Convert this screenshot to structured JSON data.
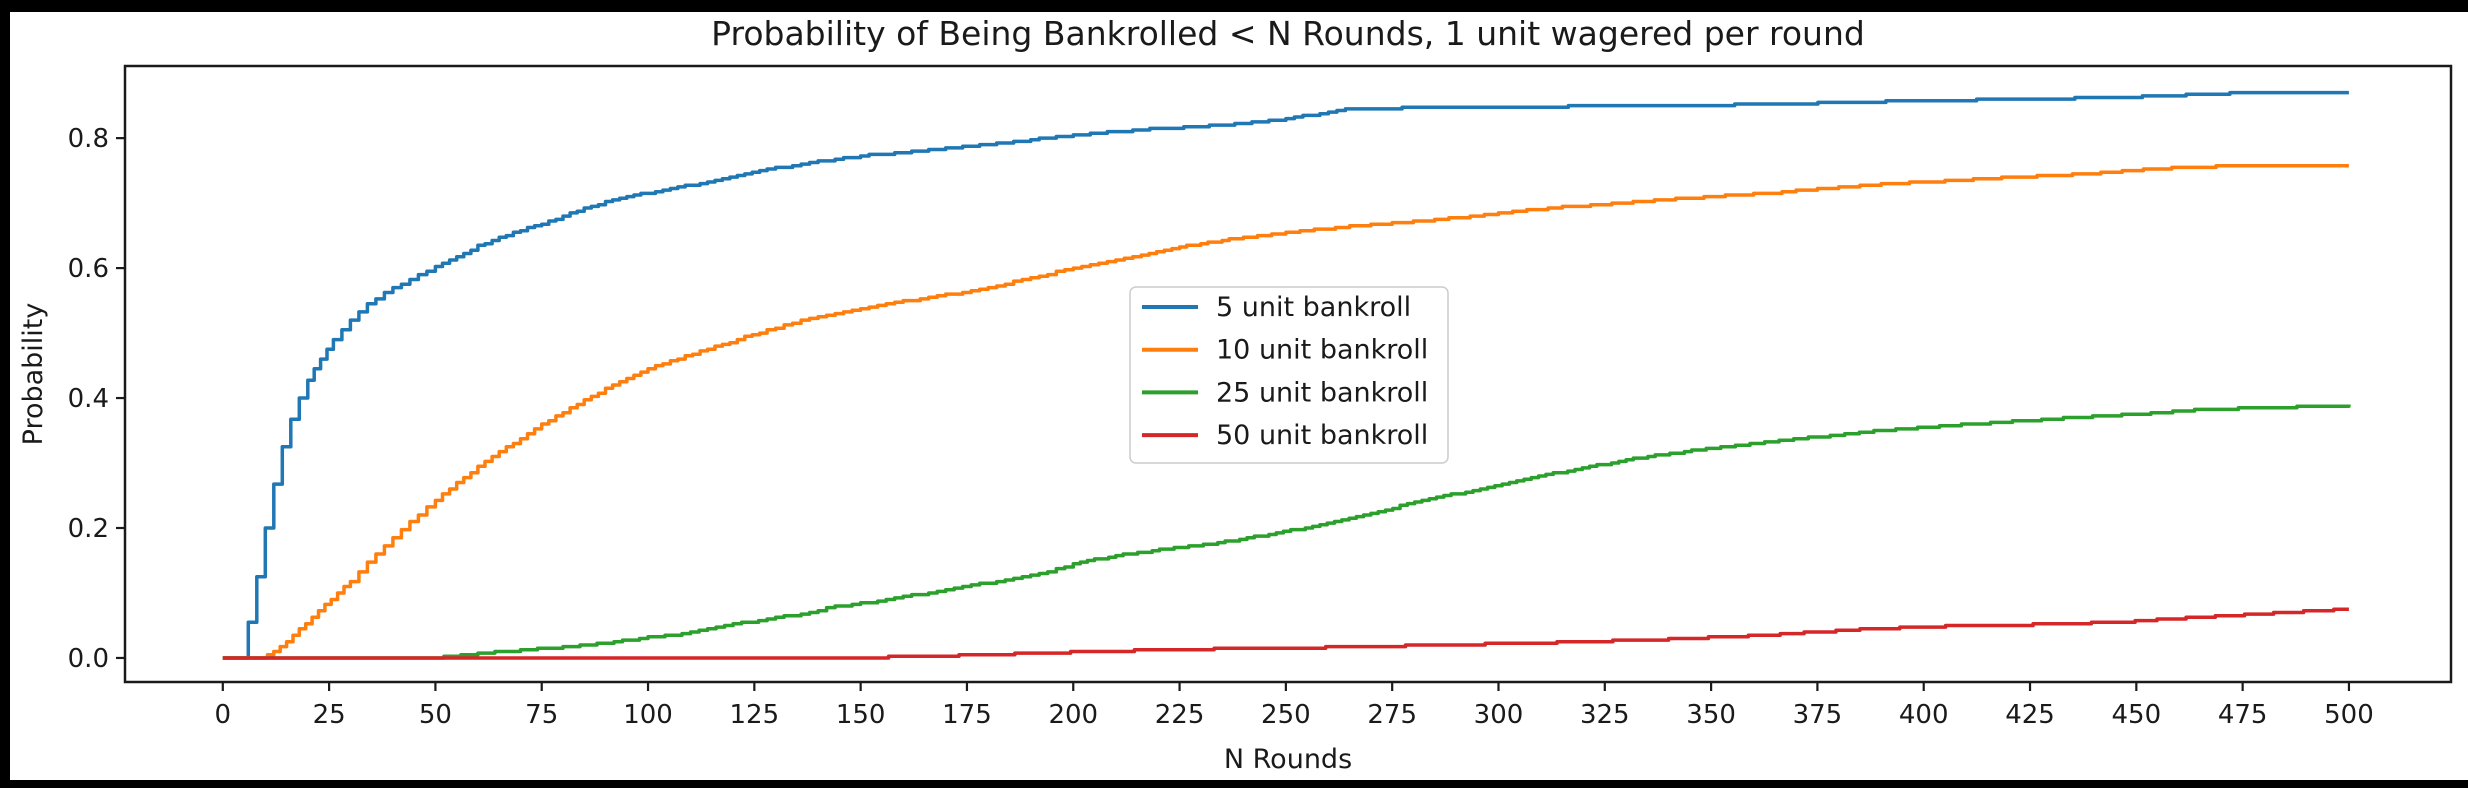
{
  "window": {
    "background_color": "#000000",
    "figure_background_color": "#ffffff"
  },
  "chart_data": {
    "type": "line",
    "subtype": "empirical-cdf-step",
    "title": "Probability of Being Bankrolled < N Rounds, 1 unit wagered per round",
    "xlabel": "N Rounds",
    "ylabel": "Probability",
    "xlim": [
      -23,
      524
    ],
    "ylim": [
      -0.037,
      0.911
    ],
    "x_ticks": [
      0,
      25,
      50,
      75,
      100,
      125,
      150,
      175,
      200,
      225,
      250,
      275,
      300,
      325,
      350,
      375,
      400,
      425,
      450,
      475,
      500
    ],
    "y_ticks": [
      "0.0",
      "0.2",
      "0.4",
      "0.6",
      "0.8"
    ],
    "y_tick_values": [
      0.0,
      0.2,
      0.4,
      0.6,
      0.8
    ],
    "grid": false,
    "axis_color": "#1a1a1a",
    "legend": {
      "position": "upper-center-right-of-middle",
      "border_color": "#cccccc",
      "background_color": "#ffffff",
      "entries": [
        "5 unit bankroll",
        "10 unit bankroll",
        "25 unit bankroll",
        "50 unit bankroll"
      ]
    },
    "series": [
      {
        "name": "5 unit bankroll",
        "color": "#1f77b4",
        "final_value": 0.871,
        "points": [
          [
            0,
            0
          ],
          [
            4,
            0
          ],
          [
            6,
            0.055
          ],
          [
            8,
            0.125
          ],
          [
            10,
            0.2
          ],
          [
            12,
            0.268
          ],
          [
            14,
            0.325
          ],
          [
            16,
            0.368
          ],
          [
            18,
            0.4
          ],
          [
            20,
            0.428
          ],
          [
            23,
            0.46
          ],
          [
            26,
            0.49
          ],
          [
            30,
            0.52
          ],
          [
            34,
            0.545
          ],
          [
            38,
            0.562
          ],
          [
            42,
            0.576
          ],
          [
            46,
            0.59
          ],
          [
            50,
            0.602
          ],
          [
            55,
            0.617
          ],
          [
            60,
            0.634
          ],
          [
            65,
            0.647
          ],
          [
            70,
            0.658
          ],
          [
            75,
            0.668
          ],
          [
            80,
            0.68
          ],
          [
            85,
            0.692
          ],
          [
            90,
            0.702
          ],
          [
            95,
            0.71
          ],
          [
            100,
            0.716
          ],
          [
            107,
            0.724
          ],
          [
            114,
            0.733
          ],
          [
            121,
            0.743
          ],
          [
            128,
            0.752
          ],
          [
            136,
            0.76
          ],
          [
            144,
            0.768
          ],
          [
            152,
            0.774
          ],
          [
            160,
            0.778
          ],
          [
            168,
            0.783
          ],
          [
            176,
            0.788
          ],
          [
            184,
            0.793
          ],
          [
            192,
            0.799
          ],
          [
            200,
            0.805
          ],
          [
            208,
            0.809
          ],
          [
            216,
            0.813
          ],
          [
            224,
            0.816
          ],
          [
            232,
            0.819
          ],
          [
            240,
            0.823
          ],
          [
            248,
            0.828
          ],
          [
            256,
            0.836
          ],
          [
            264,
            0.844
          ],
          [
            272,
            0.846
          ],
          [
            288,
            0.847
          ],
          [
            304,
            0.848
          ],
          [
            320,
            0.849
          ],
          [
            336,
            0.85
          ],
          [
            352,
            0.851
          ],
          [
            368,
            0.853
          ],
          [
            384,
            0.855
          ],
          [
            400,
            0.858
          ],
          [
            416,
            0.859
          ],
          [
            432,
            0.861
          ],
          [
            448,
            0.863
          ],
          [
            460,
            0.866
          ],
          [
            472,
            0.869
          ],
          [
            486,
            0.87
          ],
          [
            500,
            0.871
          ]
        ]
      },
      {
        "name": "10 unit bankroll",
        "color": "#ff7f0e",
        "final_value": 0.758,
        "points": [
          [
            0,
            0
          ],
          [
            9,
            0
          ],
          [
            12,
            0.01
          ],
          [
            15,
            0.025
          ],
          [
            18,
            0.044
          ],
          [
            21,
            0.062
          ],
          [
            24,
            0.082
          ],
          [
            27,
            0.1
          ],
          [
            30,
            0.118
          ],
          [
            34,
            0.147
          ],
          [
            38,
            0.172
          ],
          [
            42,
            0.198
          ],
          [
            46,
            0.221
          ],
          [
            50,
            0.243
          ],
          [
            55,
            0.269
          ],
          [
            60,
            0.294
          ],
          [
            65,
            0.317
          ],
          [
            70,
            0.338
          ],
          [
            75,
            0.359
          ],
          [
            80,
            0.378
          ],
          [
            85,
            0.397
          ],
          [
            90,
            0.414
          ],
          [
            95,
            0.431
          ],
          [
            100,
            0.446
          ],
          [
            107,
            0.461
          ],
          [
            114,
            0.475
          ],
          [
            121,
            0.49
          ],
          [
            128,
            0.505
          ],
          [
            136,
            0.519
          ],
          [
            144,
            0.53
          ],
          [
            152,
            0.541
          ],
          [
            160,
            0.549
          ],
          [
            168,
            0.557
          ],
          [
            176,
            0.565
          ],
          [
            184,
            0.576
          ],
          [
            192,
            0.588
          ],
          [
            200,
            0.6
          ],
          [
            208,
            0.611
          ],
          [
            216,
            0.621
          ],
          [
            225,
            0.632
          ],
          [
            235,
            0.643
          ],
          [
            245,
            0.651
          ],
          [
            255,
            0.658
          ],
          [
            265,
            0.664
          ],
          [
            275,
            0.669
          ],
          [
            285,
            0.674
          ],
          [
            295,
            0.681
          ],
          [
            305,
            0.688
          ],
          [
            315,
            0.694
          ],
          [
            325,
            0.698
          ],
          [
            335,
            0.703
          ],
          [
            345,
            0.708
          ],
          [
            355,
            0.712
          ],
          [
            365,
            0.716
          ],
          [
            375,
            0.722
          ],
          [
            385,
            0.727
          ],
          [
            395,
            0.731
          ],
          [
            405,
            0.734
          ],
          [
            415,
            0.738
          ],
          [
            425,
            0.741
          ],
          [
            435,
            0.744
          ],
          [
            445,
            0.748
          ],
          [
            455,
            0.753
          ],
          [
            465,
            0.756
          ],
          [
            480,
            0.757
          ],
          [
            500,
            0.758
          ]
        ]
      },
      {
        "name": "25 unit bankroll",
        "color": "#2ca02c",
        "final_value": 0.389,
        "points": [
          [
            0,
            0
          ],
          [
            50,
            0
          ],
          [
            56,
            0.005
          ],
          [
            62,
            0.008
          ],
          [
            68,
            0.011
          ],
          [
            74,
            0.014
          ],
          [
            80,
            0.017
          ],
          [
            86,
            0.021
          ],
          [
            92,
            0.025
          ],
          [
            98,
            0.03
          ],
          [
            104,
            0.034
          ],
          [
            110,
            0.04
          ],
          [
            116,
            0.048
          ],
          [
            122,
            0.054
          ],
          [
            128,
            0.06
          ],
          [
            136,
            0.068
          ],
          [
            144,
            0.079
          ],
          [
            152,
            0.086
          ],
          [
            160,
            0.094
          ],
          [
            168,
            0.103
          ],
          [
            176,
            0.112
          ],
          [
            184,
            0.119
          ],
          [
            192,
            0.129
          ],
          [
            200,
            0.145
          ],
          [
            210,
            0.158
          ],
          [
            222,
            0.168
          ],
          [
            234,
            0.177
          ],
          [
            246,
            0.19
          ],
          [
            258,
            0.205
          ],
          [
            270,
            0.222
          ],
          [
            282,
            0.243
          ],
          [
            294,
            0.258
          ],
          [
            306,
            0.276
          ],
          [
            318,
            0.29
          ],
          [
            330,
            0.305
          ],
          [
            342,
            0.316
          ],
          [
            354,
            0.326
          ],
          [
            366,
            0.335
          ],
          [
            378,
            0.342
          ],
          [
            390,
            0.35
          ],
          [
            402,
            0.356
          ],
          [
            414,
            0.361
          ],
          [
            426,
            0.366
          ],
          [
            438,
            0.371
          ],
          [
            450,
            0.375
          ],
          [
            462,
            0.381
          ],
          [
            474,
            0.384
          ],
          [
            486,
            0.386
          ],
          [
            500,
            0.389
          ]
        ]
      },
      {
        "name": "50 unit bankroll",
        "color": "#d62728",
        "final_value": 0.075,
        "points": [
          [
            0,
            0
          ],
          [
            148,
            0
          ],
          [
            160,
            0.002
          ],
          [
            175,
            0.004
          ],
          [
            190,
            0.007
          ],
          [
            205,
            0.01
          ],
          [
            220,
            0.012
          ],
          [
            235,
            0.014
          ],
          [
            250,
            0.015
          ],
          [
            265,
            0.017
          ],
          [
            280,
            0.019
          ],
          [
            295,
            0.021
          ],
          [
            310,
            0.023
          ],
          [
            325,
            0.026
          ],
          [
            340,
            0.029
          ],
          [
            355,
            0.033
          ],
          [
            370,
            0.038
          ],
          [
            385,
            0.044
          ],
          [
            400,
            0.048
          ],
          [
            412,
            0.05
          ],
          [
            424,
            0.051
          ],
          [
            436,
            0.053
          ],
          [
            448,
            0.056
          ],
          [
            460,
            0.061
          ],
          [
            472,
            0.065
          ],
          [
            484,
            0.07
          ],
          [
            500,
            0.075
          ]
        ]
      }
    ]
  }
}
